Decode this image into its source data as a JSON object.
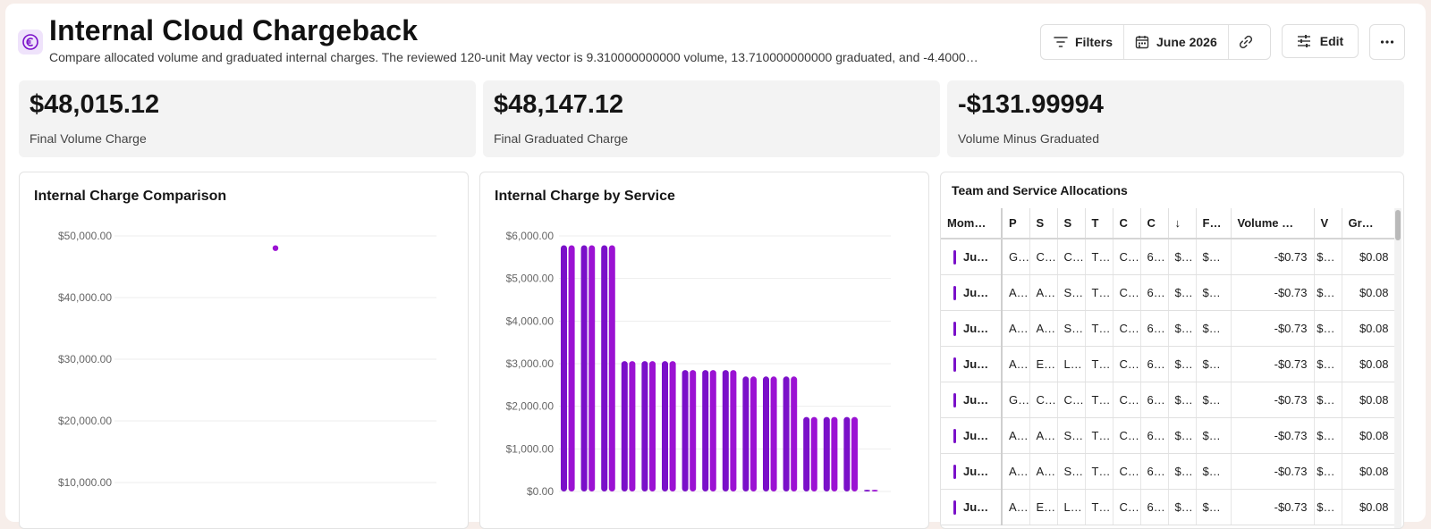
{
  "header": {
    "title": "Internal Cloud Chargeback",
    "subtitle": "Compare allocated volume and graduated internal charges. The reviewed 120-unit May vector is 9.310000000000 volume, 13.710000000000 graduated, and -4.4000…",
    "app_icon": "euro-coin-icon"
  },
  "toolbar": {
    "filters_label": "Filters",
    "date_label": "June 2026",
    "edit_label": "Edit",
    "icons": {
      "filters": "filter-lines-icon",
      "date": "calendar-icon",
      "link": "link-icon",
      "edit": "sliders-icon",
      "more": "more-dots-icon"
    }
  },
  "kpis": [
    {
      "value": "$48,015.12",
      "label": "Final Volume Charge"
    },
    {
      "value": "$48,147.12",
      "label": "Final Graduated Charge"
    },
    {
      "value": "-$131.99994",
      "label": "Volume Minus Graduated"
    }
  ],
  "colors": {
    "accent": "#7a10c9",
    "accent_alt": "#9b12d3",
    "bg": "#f7eeea"
  },
  "chart_comparison": {
    "title": "Internal Charge Comparison",
    "chart_data": {
      "type": "scatter",
      "title": "Internal Charge Comparison",
      "yticks": [
        "$50,000.00",
        "$40,000.00",
        "$30,000.00",
        "$20,000.00",
        "$10,000.00"
      ],
      "ytick_values": [
        50000,
        40000,
        30000,
        20000,
        10000
      ],
      "ylim": [
        0,
        52000
      ],
      "points": [
        {
          "x": 0.5,
          "y": 48015.12
        }
      ],
      "grid": true
    }
  },
  "chart_service": {
    "title": "Internal Charge by Service",
    "chart_data": {
      "type": "bar",
      "title": "Internal Charge by Service",
      "yticks": [
        "$6,000.00",
        "$5,000.00",
        "$4,000.00",
        "$3,000.00",
        "$2,000.00",
        "$1,000.00",
        "$0.00"
      ],
      "ytick_values": [
        6000,
        5000,
        4000,
        3000,
        2000,
        1000,
        0
      ],
      "ylim": [
        0,
        6000
      ],
      "groups": [
        [
          5780,
          5780
        ],
        [
          5780,
          5780
        ],
        [
          5780,
          5780
        ],
        [
          3060,
          3060
        ],
        [
          3060,
          3060
        ],
        [
          3060,
          3060
        ],
        [
          2850,
          2850
        ],
        [
          2850,
          2850
        ],
        [
          2850,
          2850
        ],
        [
          2700,
          2700
        ],
        [
          2700,
          2700
        ],
        [
          2700,
          2700
        ],
        [
          1750,
          1750
        ],
        [
          1750,
          1750
        ],
        [
          1750,
          1750
        ],
        [
          40,
          40
        ]
      ],
      "grid": true
    }
  },
  "table": {
    "title": "Team and Service Allocations",
    "columns": [
      "Mom…",
      "P",
      "S",
      "S",
      "T",
      "C",
      "C",
      "↓",
      "F…",
      "Volume …",
      "V",
      "Gr…"
    ],
    "rows": [
      [
        "Ju…",
        "G…",
        "C…",
        "C…",
        "T…",
        "C…",
        "6…",
        "$…",
        "$…",
        "-$0.73",
        "$…",
        "$0.08"
      ],
      [
        "Ju…",
        "A…",
        "A…",
        "S…",
        "T…",
        "C…",
        "6…",
        "$…",
        "$…",
        "-$0.73",
        "$…",
        "$0.08"
      ],
      [
        "Ju…",
        "A…",
        "A…",
        "S…",
        "T…",
        "C…",
        "6…",
        "$…",
        "$…",
        "-$0.73",
        "$…",
        "$0.08"
      ],
      [
        "Ju…",
        "A…",
        "E…",
        "L…",
        "T…",
        "C…",
        "6…",
        "$…",
        "$…",
        "-$0.73",
        "$…",
        "$0.08"
      ],
      [
        "Ju…",
        "G…",
        "C…",
        "C…",
        "T…",
        "C…",
        "6…",
        "$…",
        "$…",
        "-$0.73",
        "$…",
        "$0.08"
      ],
      [
        "Ju…",
        "A…",
        "A…",
        "S…",
        "T…",
        "C…",
        "6…",
        "$…",
        "$…",
        "-$0.73",
        "$…",
        "$0.08"
      ],
      [
        "Ju…",
        "A…",
        "A…",
        "S…",
        "T…",
        "C…",
        "6…",
        "$…",
        "$…",
        "-$0.73",
        "$…",
        "$0.08"
      ],
      [
        "Ju…",
        "A…",
        "E…",
        "L…",
        "T…",
        "C…",
        "6…",
        "$…",
        "$…",
        "-$0.73",
        "$…",
        "$0.08"
      ]
    ]
  }
}
